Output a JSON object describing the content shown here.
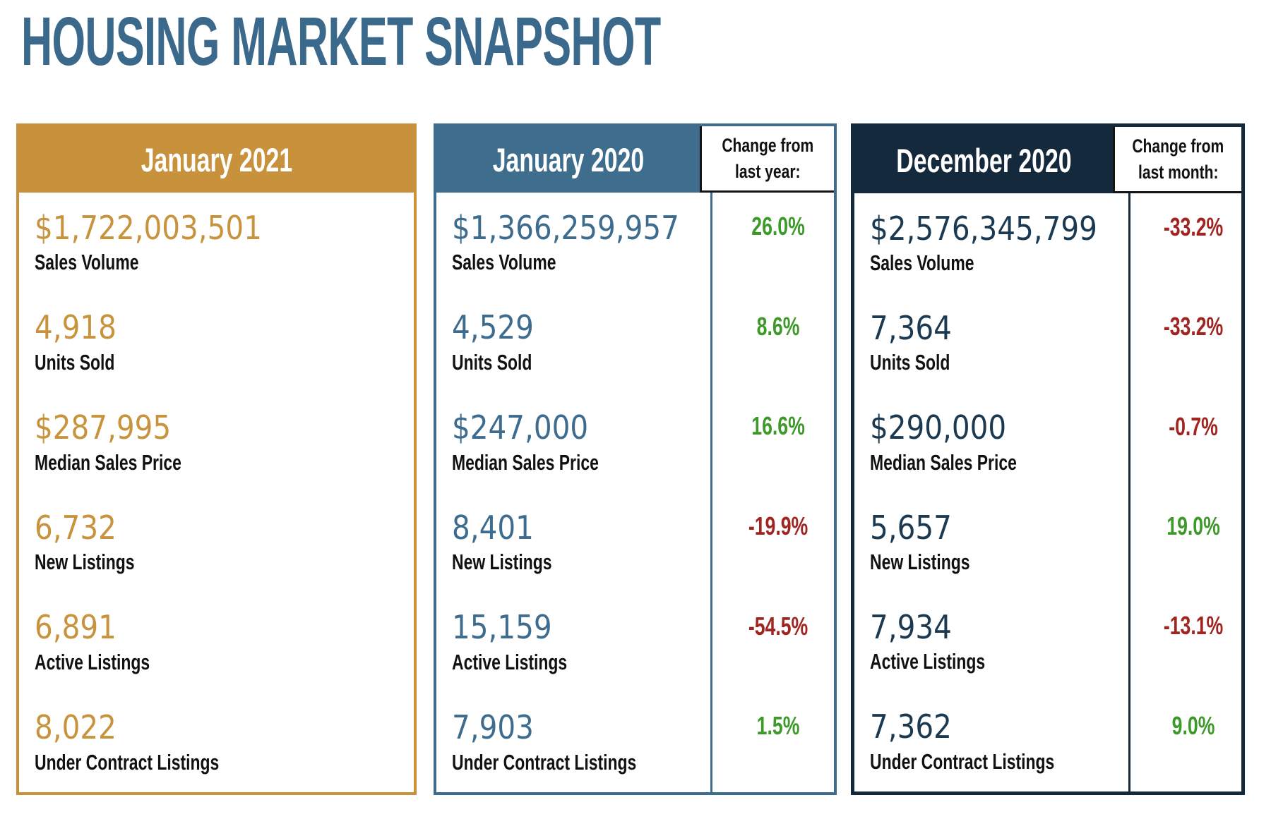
{
  "title": "HOUSING MARKET SNAPSHOT",
  "colors": {
    "title_blue": "#3A698B",
    "gold_accent": "#C8923C",
    "blue_accent": "#3D6C8E",
    "navy_accent": "#15293C",
    "positive_green": "#3E992B",
    "negative_red": "#A02521",
    "label_black": "#111111"
  },
  "panels": [
    {
      "header": "January 2021",
      "rows": [
        {
          "value": "$1,722,003,501",
          "label": "Sales Volume"
        },
        {
          "value": "4,918",
          "label": "Units Sold"
        },
        {
          "value": "$287,995",
          "label": "Median Sales Price"
        },
        {
          "value": "6,732",
          "label": "New Listings"
        },
        {
          "value": "6,891",
          "label": "Active Listings"
        },
        {
          "value": "8,022",
          "label": "Under Contract Listings"
        }
      ]
    },
    {
      "header": "January 2020",
      "change_header_line1": "Change from",
      "change_header_line2": "last year:",
      "rows": [
        {
          "value": "$1,366,259,957",
          "label": "Sales Volume",
          "change": "26.0%",
          "trend": "up"
        },
        {
          "value": "4,529",
          "label": "Units Sold",
          "change": "8.6%",
          "trend": "up"
        },
        {
          "value": "$247,000",
          "label": "Median Sales Price",
          "change": "16.6%",
          "trend": "up"
        },
        {
          "value": "8,401",
          "label": "New Listings",
          "change": "-19.9%",
          "trend": "down"
        },
        {
          "value": "15,159",
          "label": "Active Listings",
          "change": "-54.5%",
          "trend": "down"
        },
        {
          "value": "7,903",
          "label": "Under Contract Listings",
          "change": "1.5%",
          "trend": "up"
        }
      ]
    },
    {
      "header": "December 2020",
      "change_header_line1": "Change from",
      "change_header_line2": "last month:",
      "rows": [
        {
          "value": "$2,576,345,799",
          "label": "Sales Volume",
          "change": "-33.2%",
          "trend": "down"
        },
        {
          "value": "7,364",
          "label": "Units Sold",
          "change": "-33.2%",
          "trend": "down"
        },
        {
          "value": "$290,000",
          "label": "Median Sales Price",
          "change": "-0.7%",
          "trend": "down"
        },
        {
          "value": "5,657",
          "label": "New Listings",
          "change": "19.0%",
          "trend": "up"
        },
        {
          "value": "7,934",
          "label": "Active Listings",
          "change": "-13.1%",
          "trend": "down"
        },
        {
          "value": "7,362",
          "label": "Under Contract Listings",
          "change": "9.0%",
          "trend": "up"
        }
      ]
    }
  ],
  "chart_data": {
    "type": "table",
    "title": "HOUSING MARKET SNAPSHOT",
    "metrics": [
      "Sales Volume",
      "Units Sold",
      "Median Sales Price",
      "New Listings",
      "Active Listings",
      "Under Contract Listings"
    ],
    "columns": [
      {
        "period": "January 2021",
        "values": [
          "$1,722,003,501",
          "4,918",
          "$287,995",
          "6,732",
          "6,891",
          "8,022"
        ]
      },
      {
        "period": "January 2020",
        "change_label": "Change from last year:",
        "values": [
          "$1,366,259,957",
          "4,529",
          "$247,000",
          "8,401",
          "15,159",
          "7,903"
        ],
        "changes": [
          "26.0%",
          "8.6%",
          "16.6%",
          "-19.9%",
          "-54.5%",
          "1.5%"
        ]
      },
      {
        "period": "December 2020",
        "change_label": "Change from last month:",
        "values": [
          "$2,576,345,799",
          "7,364",
          "$290,000",
          "5,657",
          "7,934",
          "7,362"
        ],
        "changes": [
          "-33.2%",
          "-33.2%",
          "-0.7%",
          "19.0%",
          "-13.1%",
          "9.0%"
        ]
      }
    ]
  }
}
